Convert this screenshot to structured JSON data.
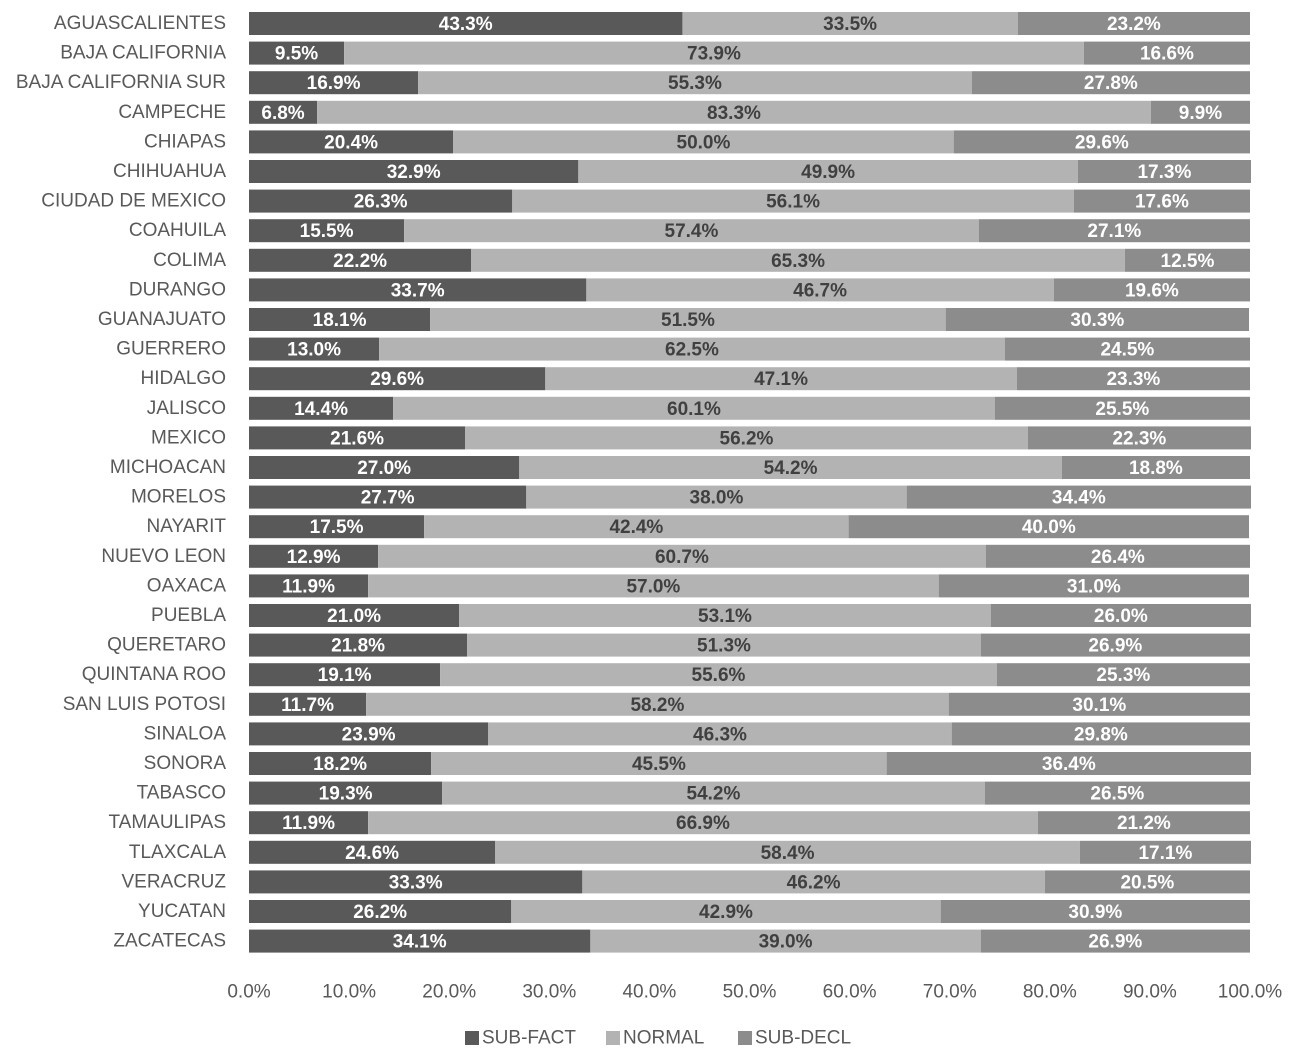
{
  "chart_data": {
    "type": "bar",
    "orientation": "horizontal",
    "stacked": "100%",
    "title": "",
    "xlabel": "",
    "ylabel": "",
    "xlim": [
      0,
      100
    ],
    "x_ticks": [
      "0.0%",
      "10.0%",
      "20.0%",
      "30.0%",
      "40.0%",
      "50.0%",
      "60.0%",
      "70.0%",
      "80.0%",
      "90.0%",
      "100.0%"
    ],
    "grid": false,
    "legend_position": "bottom",
    "categories": [
      "AGUASCALIENTES",
      "BAJA CALIFORNIA",
      "BAJA CALIFORNIA SUR",
      "CAMPECHE",
      "CHIAPAS",
      "CHIHUAHUA",
      "CIUDAD DE MEXICO",
      "COAHUILA",
      "COLIMA",
      "DURANGO",
      "GUANAJUATO",
      "GUERRERO",
      "HIDALGO",
      "JALISCO",
      "MEXICO",
      "MICHOACAN",
      "MORELOS",
      "NAYARIT",
      "NUEVO LEON",
      "OAXACA",
      "PUEBLA",
      "QUERETARO",
      "QUINTANA ROO",
      "SAN LUIS POTOSI",
      "SINALOA",
      "SONORA",
      "TABASCO",
      "TAMAULIPAS",
      "TLAXCALA",
      "VERACRUZ",
      "YUCATAN",
      "ZACATECAS"
    ],
    "series": [
      {
        "name": "SUB-FACT",
        "color": "#595959",
        "label_color": "#ffffff",
        "values": [
          43.3,
          9.5,
          16.9,
          6.8,
          20.4,
          32.9,
          26.3,
          15.5,
          22.2,
          33.7,
          18.1,
          13.0,
          29.6,
          14.4,
          21.6,
          27.0,
          27.7,
          17.5,
          12.9,
          11.9,
          21.0,
          21.8,
          19.1,
          11.7,
          23.9,
          18.2,
          19.3,
          11.9,
          24.6,
          33.3,
          26.2,
          34.1
        ]
      },
      {
        "name": "NORMAL",
        "color": "#b3b3b3",
        "label_color": "#404040",
        "values": [
          33.5,
          73.9,
          55.3,
          83.3,
          50.0,
          49.9,
          56.1,
          57.4,
          65.3,
          46.7,
          51.5,
          62.5,
          47.1,
          60.1,
          56.2,
          54.2,
          38.0,
          42.4,
          60.7,
          57.0,
          53.1,
          51.3,
          55.6,
          58.2,
          46.3,
          45.5,
          54.2,
          66.9,
          58.4,
          46.2,
          42.9,
          39.0
        ]
      },
      {
        "name": "SUB-DECL",
        "color": "#8c8c8c",
        "label_color": "#ffffff",
        "values": [
          23.2,
          16.6,
          27.8,
          9.9,
          29.6,
          17.3,
          17.6,
          27.1,
          12.5,
          19.6,
          30.3,
          24.5,
          23.3,
          25.5,
          22.3,
          18.8,
          34.4,
          40.0,
          26.4,
          31.0,
          26.0,
          26.9,
          25.3,
          30.1,
          29.8,
          36.4,
          26.5,
          21.2,
          17.1,
          20.5,
          30.9,
          26.9
        ]
      }
    ]
  }
}
